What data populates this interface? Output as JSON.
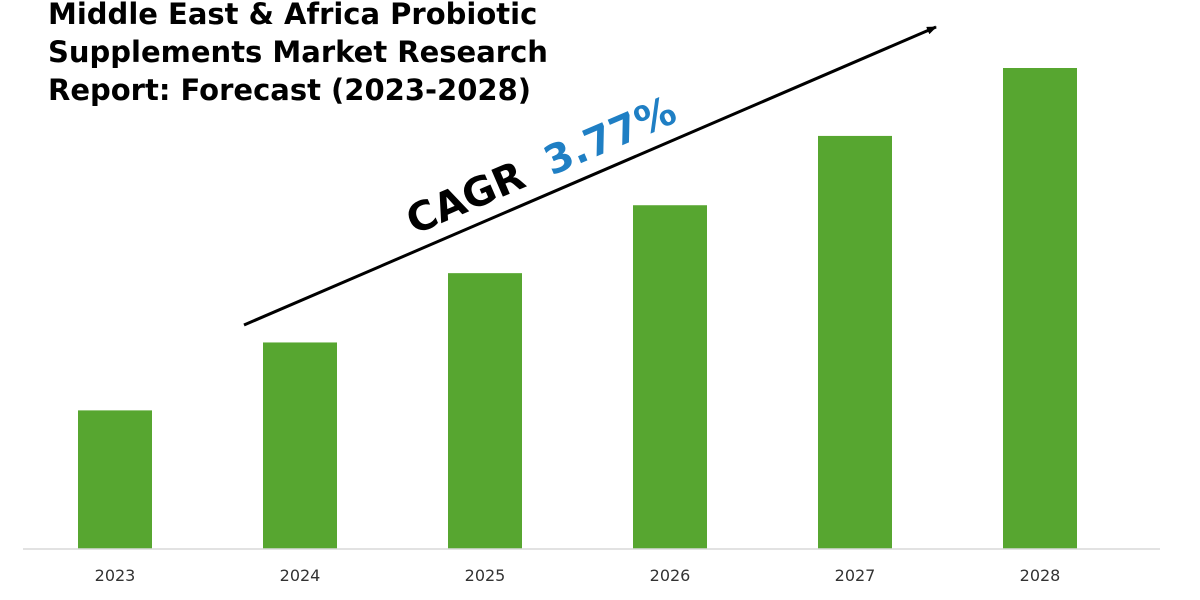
{
  "chart_data": {
    "type": "bar",
    "title_lines": [
      "Middle East & Africa Probiotic",
      "Supplements Market Research",
      "Report: Forecast (2023-2028)"
    ],
    "categories": [
      "2023",
      "2024",
      "2025",
      "2026",
      "2027",
      "2028"
    ],
    "values": [
      1.0,
      1.49,
      1.99,
      2.48,
      2.98,
      3.47
    ],
    "ylim": [
      0,
      3.47
    ],
    "grid": false,
    "annotation": {
      "label": "CAGR",
      "value": "3.77%"
    },
    "colors": {
      "bar": "#57a630",
      "cagr_value": "#1f7fc4",
      "axis": "#d9d9d9",
      "arrow": "#000000"
    }
  }
}
